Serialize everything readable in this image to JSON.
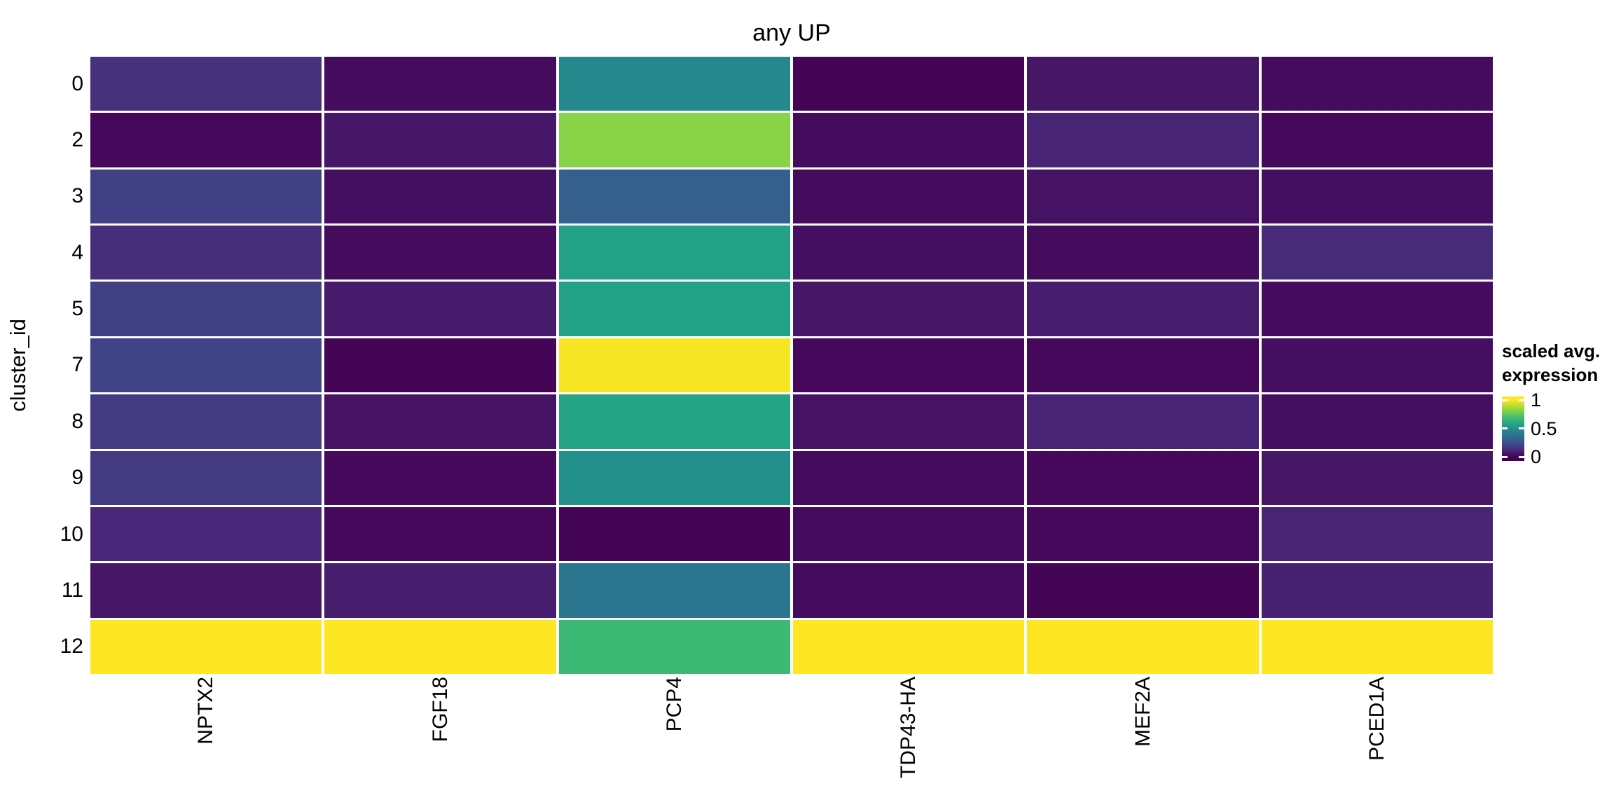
{
  "title": "any UP",
  "y_axis": {
    "label": "cluster_id",
    "ticks": [
      "0",
      "2",
      "3",
      "4",
      "5",
      "7",
      "8",
      "9",
      "10",
      "11",
      "12"
    ]
  },
  "x_axis": {
    "ticks": [
      "NPTX2",
      "FGF18",
      "PCP4",
      "TDP43-HA",
      "MEF2A",
      "PCED1A"
    ]
  },
  "legend": {
    "title_line1": "scaled avg.",
    "title_line2": "expression",
    "tick_labels": [
      "1",
      "0.5",
      "0"
    ],
    "tick_values": [
      1,
      0.5,
      0
    ]
  },
  "colors": {
    "background": "#ffffff",
    "text": "#000000",
    "grid_gap": "#ffffff",
    "viridis_stops": [
      "#440154",
      "#482878",
      "#3e4a89",
      "#31688e",
      "#26828e",
      "#1f9e89",
      "#35b779",
      "#6dcd59",
      "#b4de2c",
      "#fde725"
    ]
  },
  "chart_data": {
    "type": "heatmap",
    "title": "any UP",
    "xlabel": "",
    "ylabel": "cluster_id",
    "legend_title": "scaled avg. expression",
    "colormap": "viridis",
    "value_range": [
      0,
      1
    ],
    "x_categories": [
      "NPTX2",
      "FGF18",
      "PCP4",
      "TDP43-HA",
      "MEF2A",
      "PCED1A"
    ],
    "y_categories": [
      "0",
      "2",
      "3",
      "4",
      "5",
      "7",
      "8",
      "9",
      "10",
      "11",
      "12"
    ],
    "values": [
      [
        0.14,
        0.03,
        0.47,
        0.01,
        0.06,
        0.03
      ],
      [
        0.02,
        0.06,
        0.82,
        0.03,
        0.1,
        0.02
      ],
      [
        0.19,
        0.04,
        0.3,
        0.03,
        0.05,
        0.04
      ],
      [
        0.13,
        0.03,
        0.57,
        0.04,
        0.03,
        0.12
      ],
      [
        0.19,
        0.07,
        0.57,
        0.06,
        0.08,
        0.03
      ],
      [
        0.2,
        0.01,
        0.99,
        0.02,
        0.02,
        0.04
      ],
      [
        0.17,
        0.05,
        0.58,
        0.05,
        0.1,
        0.04
      ],
      [
        0.17,
        0.02,
        0.5,
        0.03,
        0.02,
        0.06
      ],
      [
        0.11,
        0.02,
        0.01,
        0.03,
        0.02,
        0.1
      ],
      [
        0.06,
        0.08,
        0.39,
        0.03,
        0.01,
        0.09
      ],
      [
        1.0,
        1.0,
        0.68,
        1.0,
        1.0,
        1.0
      ]
    ]
  }
}
